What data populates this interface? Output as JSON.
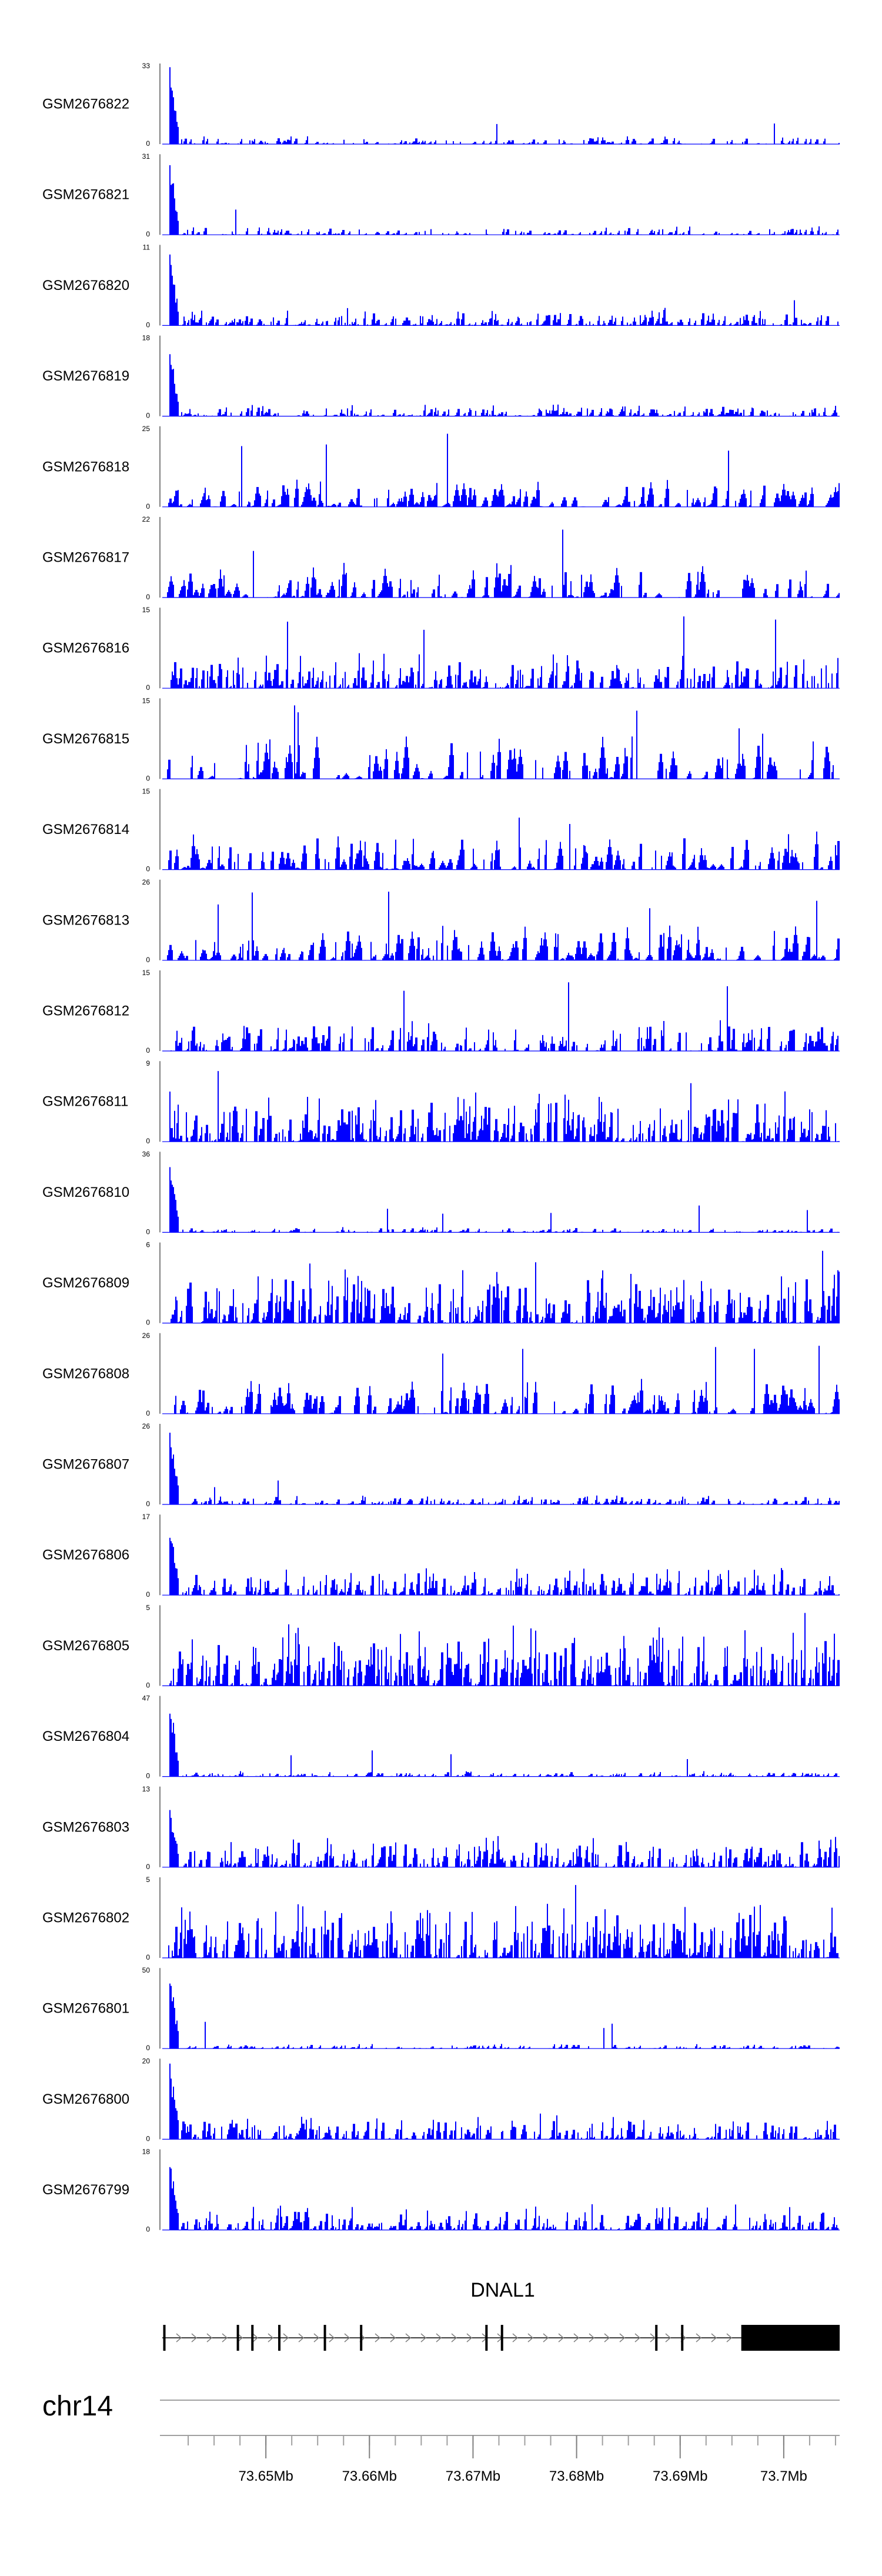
{
  "chart_data": {
    "type": "area",
    "colors": {
      "signal": "#0000ff",
      "gene": "#000000",
      "axis": "#000000",
      "strand": "#808080"
    },
    "x_range": [
      73.64,
      73.7054
    ],
    "x_unit": "Mb",
    "tracks": [
      {
        "name": "GSM2676822",
        "ymax": "33",
        "ymin": "0",
        "seed": 11,
        "profile": "tss",
        "peak": 1.0,
        "base": 0.1,
        "density": 0.3
      },
      {
        "name": "GSM2676821",
        "ymax": "31",
        "ymin": "0",
        "seed": 12,
        "profile": "tss",
        "peak": 1.0,
        "base": 0.11,
        "density": 0.32
      },
      {
        "name": "GSM2676820",
        "ymax": "11",
        "ymin": "0",
        "seed": 13,
        "profile": "tss",
        "peak": 0.95,
        "base": 0.2,
        "density": 0.45
      },
      {
        "name": "GSM2676819",
        "ymax": "18",
        "ymin": "0",
        "seed": 14,
        "profile": "tss",
        "peak": 0.9,
        "base": 0.15,
        "density": 0.4
      },
      {
        "name": "GSM2676818",
        "ymax": "25",
        "ymin": "0",
        "seed": 15,
        "profile": "sparse",
        "peak": 0.3,
        "base": 0.35,
        "density": 0.28
      },
      {
        "name": "GSM2676817",
        "ymax": "22",
        "ymin": "0",
        "seed": 16,
        "profile": "sparse",
        "peak": 0.2,
        "base": 0.45,
        "density": 0.25
      },
      {
        "name": "GSM2676816",
        "ymax": "15",
        "ymin": "0",
        "seed": 17,
        "profile": "dense",
        "peak": 0.3,
        "base": 0.45,
        "density": 0.42
      },
      {
        "name": "GSM2676815",
        "ymax": "15",
        "ymin": "0",
        "seed": 18,
        "profile": "sparse",
        "peak": 0.2,
        "base": 0.55,
        "density": 0.22
      },
      {
        "name": "GSM2676814",
        "ymax": "15",
        "ymin": "0",
        "seed": 19,
        "profile": "sparse",
        "peak": 0.3,
        "base": 0.5,
        "density": 0.28
      },
      {
        "name": "GSM2676813",
        "ymax": "26",
        "ymin": "0",
        "seed": 20,
        "profile": "sparse",
        "peak": 0.2,
        "base": 0.45,
        "density": 0.3
      },
      {
        "name": "GSM2676812",
        "ymax": "15",
        "ymin": "0",
        "seed": 21,
        "profile": "dense",
        "peak": 0.3,
        "base": 0.4,
        "density": 0.38
      },
      {
        "name": "GSM2676811",
        "ymax": "9",
        "ymin": "0",
        "seed": 22,
        "profile": "dense",
        "peak": 0.5,
        "base": 0.65,
        "density": 0.55
      },
      {
        "name": "GSM2676810",
        "ymax": "36",
        "ymin": "0",
        "seed": 23,
        "profile": "tss",
        "peak": 1.0,
        "base": 0.07,
        "density": 0.32
      },
      {
        "name": "GSM2676809",
        "ymax": "6",
        "ymin": "0",
        "seed": 24,
        "profile": "dense",
        "peak": 0.6,
        "base": 0.7,
        "density": 0.55
      },
      {
        "name": "GSM2676808",
        "ymax": "26",
        "ymin": "0",
        "seed": 25,
        "profile": "sparse",
        "peak": 0.2,
        "base": 0.45,
        "density": 0.25
      },
      {
        "name": "GSM2676807",
        "ymax": "26",
        "ymin": "0",
        "seed": 26,
        "profile": "tss",
        "peak": 1.0,
        "base": 0.12,
        "density": 0.38
      },
      {
        "name": "GSM2676806",
        "ymax": "17",
        "ymin": "0",
        "seed": 27,
        "profile": "tss",
        "peak": 0.9,
        "base": 0.35,
        "density": 0.45
      },
      {
        "name": "GSM2676805",
        "ymax": "5",
        "ymin": "0",
        "seed": 28,
        "profile": "dense",
        "peak": 0.5,
        "base": 0.75,
        "density": 0.6
      },
      {
        "name": "GSM2676804",
        "ymax": "47",
        "ymin": "0",
        "seed": 29,
        "profile": "tss",
        "peak": 1.0,
        "base": 0.07,
        "density": 0.35
      },
      {
        "name": "GSM2676803",
        "ymax": "13",
        "ymin": "0",
        "seed": 30,
        "profile": "tss",
        "peak": 0.85,
        "base": 0.4,
        "density": 0.48
      },
      {
        "name": "GSM2676802",
        "ymax": "5",
        "ymin": "0",
        "seed": 31,
        "profile": "dense",
        "peak": 0.6,
        "base": 0.7,
        "density": 0.55
      },
      {
        "name": "GSM2676801",
        "ymax": "50",
        "ymin": "0",
        "seed": 32,
        "profile": "tss",
        "peak": 1.0,
        "base": 0.06,
        "density": 0.32
      },
      {
        "name": "GSM2676800",
        "ymax": "20",
        "ymin": "0",
        "seed": 33,
        "profile": "tss",
        "peak": 1.0,
        "base": 0.3,
        "density": 0.45
      },
      {
        "name": "GSM2676799",
        "ymax": "18",
        "ymin": "0",
        "seed": 34,
        "profile": "tss",
        "peak": 1.0,
        "base": 0.3,
        "density": 0.45
      }
    ],
    "gene": {
      "name": "DNAL1",
      "strand": "+",
      "exons_mb": [
        73.6402,
        73.6473,
        73.6487,
        73.6513,
        73.6557,
        73.6592,
        73.6713,
        73.6728,
        73.6877,
        73.6902
      ],
      "utr3_mb": [
        73.6959,
        73.7054
      ]
    },
    "chromosome": "chr14",
    "axis_ticks_mb": [
      73.65,
      73.66,
      73.67,
      73.68,
      73.69,
      73.7
    ],
    "axis_labels": [
      "73.65Mb",
      "73.66Mb",
      "73.67Mb",
      "73.68Mb",
      "73.69Mb",
      "73.7Mb"
    ]
  }
}
